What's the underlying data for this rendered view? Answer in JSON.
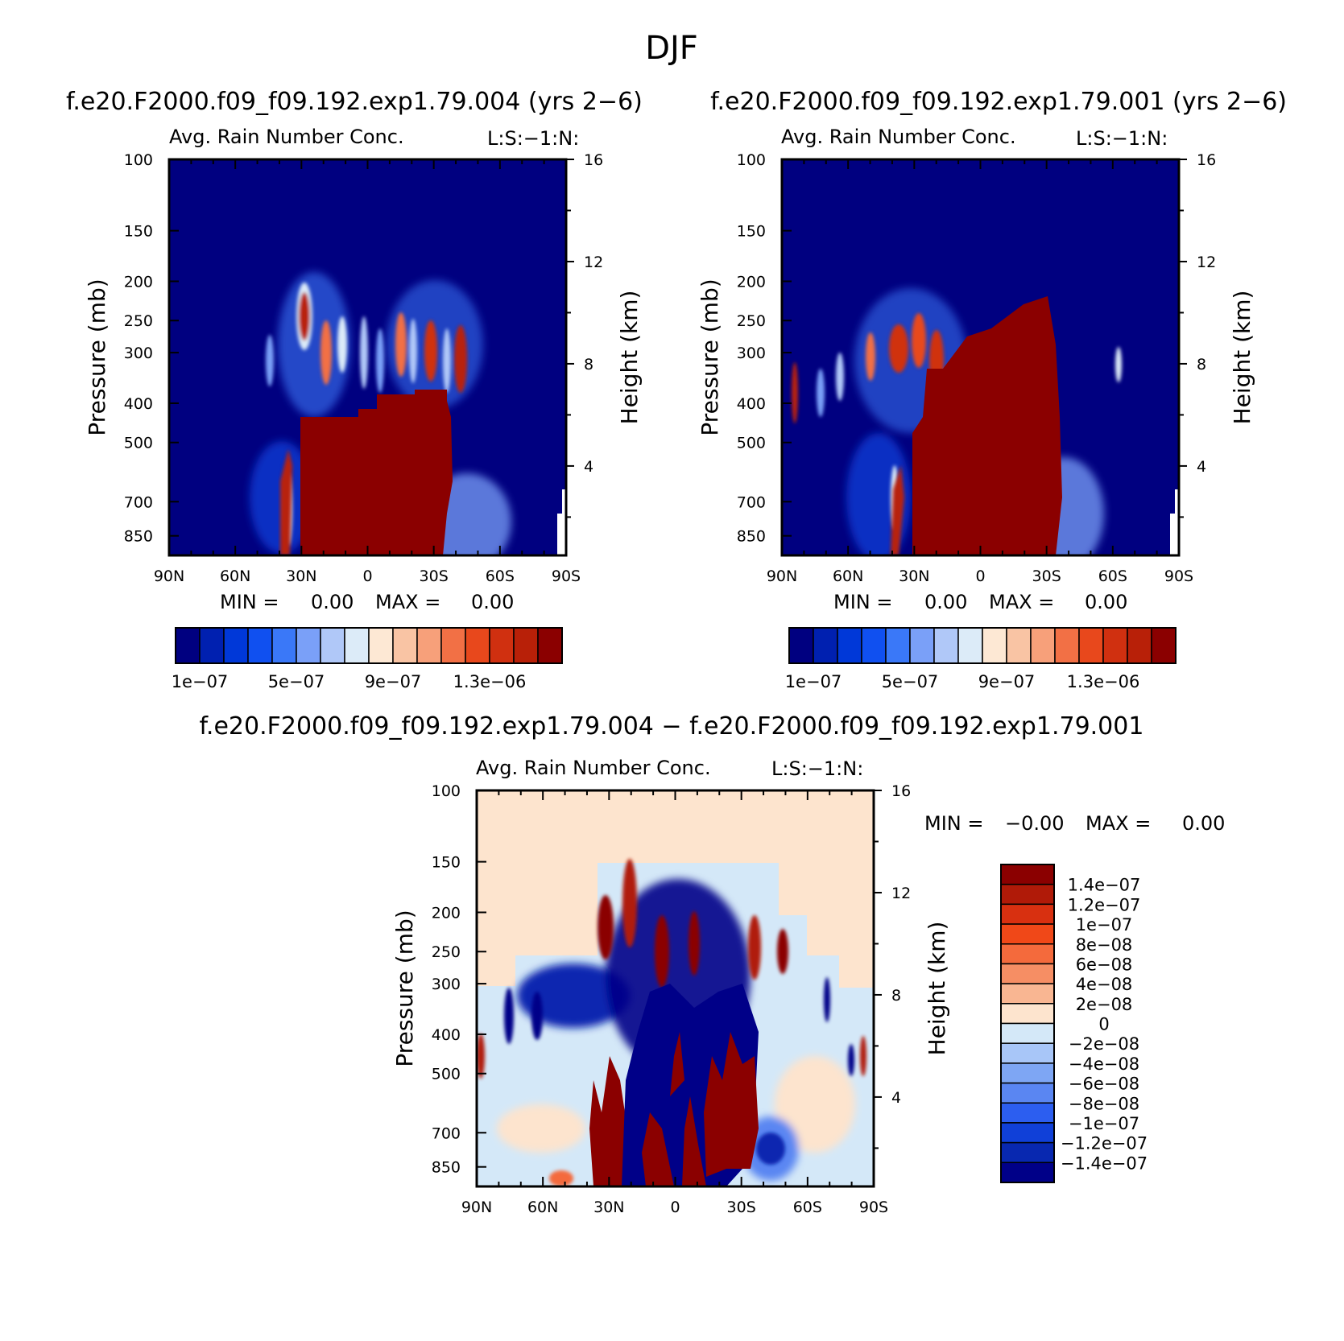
{
  "figure": {
    "title": "DJF",
    "run_a": "f.e20.F2000.f09_f09.192.exp1.79.004 (yrs 2−6)",
    "run_b": "f.e20.F2000.f09_f09.192.exp1.79.001 (yrs 2−6)",
    "diff_title": "f.e20.F2000.f09_f09.192.exp1.79.004 − f.e20.F2000.f09_f09.192.exp1.79.001"
  },
  "common": {
    "panel_title": "Avg. Rain Number Conc.",
    "corner_label": "L:S:−1:N:",
    "ylabel_left": "Pressure (mb)",
    "ylabel_right": "Height (km)",
    "pressure_ticks": [
      "100",
      "150",
      "200",
      "250",
      "300",
      "400",
      "500",
      "700",
      "850"
    ],
    "height_ticks": [
      "16",
      "12",
      "8",
      "4"
    ],
    "lat_ticks": [
      "90N",
      "60N",
      "30N",
      "0",
      "30S",
      "60S",
      "90S"
    ]
  },
  "chart_data": [
    {
      "type": "heatmap",
      "name": "exp1.79.004",
      "title": "Avg. Rain Number Conc.",
      "xlabel": "",
      "ylabel": "Pressure (mb)",
      "y2label": "Height (km)",
      "x_range": [
        "90N",
        "90S"
      ],
      "y_range_mb": [
        100,
        950
      ],
      "y2_range_km": [
        0.5,
        16
      ],
      "min_label": "MIN =",
      "min_value": "0.00",
      "max_label": "MAX =",
      "max_value": "0.00",
      "colorbar": {
        "orientation": "horizontal",
        "colors": [
          "#000080",
          "#0020b0",
          "#0038d8",
          "#1050f0",
          "#3a78f8",
          "#7aa0f8",
          "#b0c8f8",
          "#dcebf8",
          "#fde8d4",
          "#f9c4a4",
          "#f7a07a",
          "#f27045",
          "#e8481c",
          "#d03010",
          "#b82008",
          "#8b0000"
        ],
        "tick_labels": [
          "1e−07",
          "5e−07",
          "9e−07",
          "1.3e−06"
        ]
      }
    },
    {
      "type": "heatmap",
      "name": "exp1.79.001",
      "title": "Avg. Rain Number Conc.",
      "xlabel": "",
      "ylabel": "Pressure (mb)",
      "y2label": "Height (km)",
      "x_range": [
        "90N",
        "90S"
      ],
      "y_range_mb": [
        100,
        950
      ],
      "y2_range_km": [
        0.5,
        16
      ],
      "min_label": "MIN =",
      "min_value": "0.00",
      "max_label": "MAX =",
      "max_value": "0.00",
      "colorbar": {
        "orientation": "horizontal",
        "colors": [
          "#000080",
          "#0020b0",
          "#0038d8",
          "#1050f0",
          "#3a78f8",
          "#7aa0f8",
          "#b0c8f8",
          "#dcebf8",
          "#fde8d4",
          "#f9c4a4",
          "#f7a07a",
          "#f27045",
          "#e8481c",
          "#d03010",
          "#b82008",
          "#8b0000"
        ],
        "tick_labels": [
          "1e−07",
          "5e−07",
          "9e−07",
          "1.3e−06"
        ]
      }
    },
    {
      "type": "heatmap",
      "name": "difference",
      "title": "Avg. Rain Number Conc.",
      "xlabel": "",
      "ylabel": "Pressure (mb)",
      "y2label": "Height (km)",
      "x_range": [
        "90N",
        "90S"
      ],
      "y_range_mb": [
        100,
        950
      ],
      "y2_range_km": [
        0.5,
        16
      ],
      "min_label": "MIN =",
      "min_value": "−0.00",
      "max_label": "MAX =",
      "max_value": "0.00",
      "colorbar": {
        "orientation": "vertical",
        "colors_top_to_bottom": [
          "#8b0000",
          "#b01a08",
          "#d83010",
          "#f04818",
          "#f46a3c",
          "#f68e64",
          "#f9b692",
          "#fde4ce",
          "#d4e8f8",
          "#a8c6f8",
          "#7ea6f4",
          "#5a86f2",
          "#2c5ef0",
          "#1040d8",
          "#0828b0",
          "#000088"
        ],
        "tick_labels": [
          "1.4e−07",
          "1.2e−07",
          "1e−07",
          "8e−08",
          "6e−08",
          "4e−08",
          "2e−08",
          "0",
          "−2e−08",
          "−4e−08",
          "−6e−08",
          "−8e−08",
          "−1e−07",
          "−1.2e−07",
          "−1.4e−07"
        ]
      }
    }
  ]
}
